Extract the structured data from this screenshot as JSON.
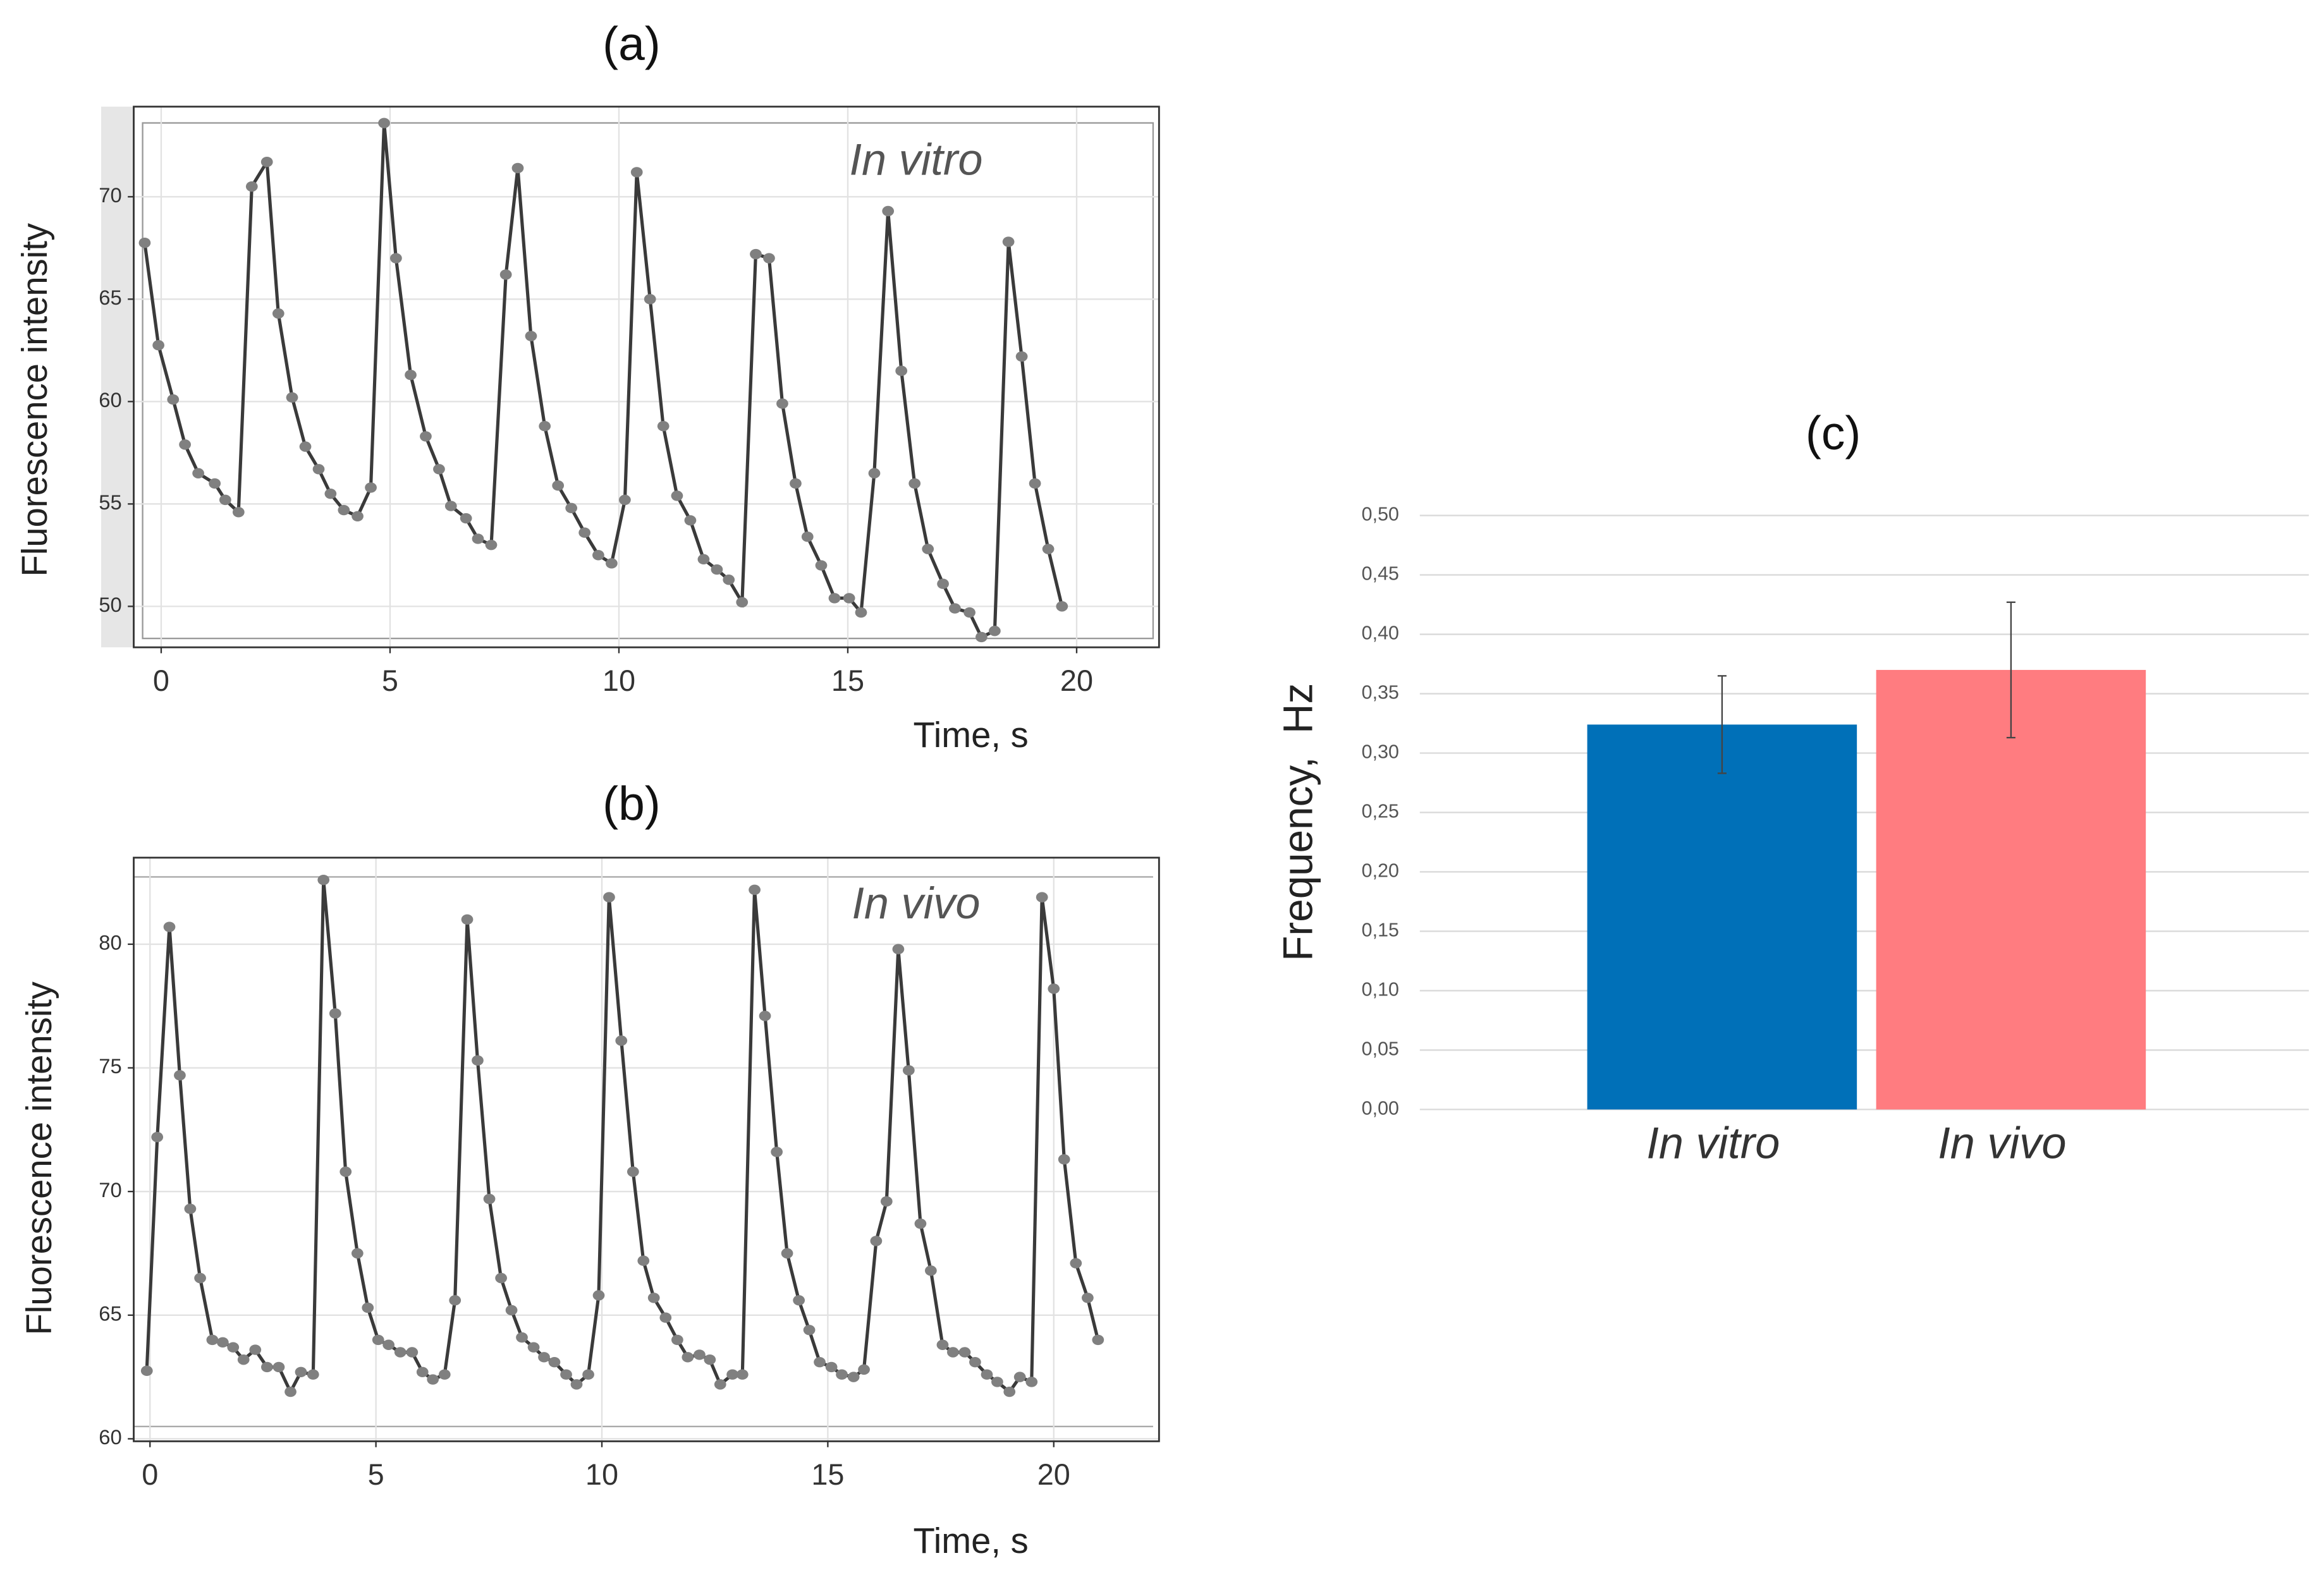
{
  "chart_data": [
    {
      "type": "line",
      "title": "(a)",
      "xlabel": "Time, s",
      "ylabel": "Fluorescence intensity",
      "annotation": "In vitro",
      "color": "#3a3a3a",
      "marker_color": "#808080",
      "grid": true,
      "xlim": [
        -0.6,
        21.8
      ],
      "ylim": [
        48,
        74.4
      ],
      "xticks": [
        0,
        5,
        10,
        15,
        20
      ],
      "yticks": [
        50,
        55,
        60,
        65,
        70
      ],
      "x": [
        -0.36,
        -0.06,
        0.26,
        0.52,
        0.81,
        1.17,
        1.4,
        1.69,
        1.98,
        2.31,
        2.56,
        2.86,
        3.15,
        3.44,
        3.7,
        3.99,
        4.29,
        4.58,
        4.87,
        5.13,
        5.45,
        5.78,
        6.07,
        6.33,
        6.66,
        6.92,
        7.21,
        7.53,
        7.79,
        8.08,
        8.38,
        8.67,
        8.96,
        9.25,
        9.55,
        9.84,
        10.13,
        10.39,
        10.68,
        10.97,
        11.27,
        11.56,
        11.85,
        12.14,
        12.4,
        12.69,
        12.99,
        13.28,
        13.57,
        13.86,
        14.12,
        14.42,
        14.71,
        15.03,
        15.29,
        15.58,
        15.88,
        16.17,
        16.46,
        16.75,
        17.08,
        17.34,
        17.66,
        17.92,
        18.21,
        18.51,
        18.8,
        19.09,
        19.38,
        19.68
      ],
      "values": [
        67.75,
        62.75,
        60.1,
        57.9,
        56.5,
        56.0,
        55.2,
        54.6,
        70.5,
        71.7,
        64.3,
        60.2,
        57.8,
        56.7,
        55.5,
        54.7,
        54.4,
        55.8,
        73.6,
        67.0,
        61.3,
        58.3,
        56.7,
        54.9,
        54.3,
        53.3,
        53.0,
        66.2,
        71.4,
        63.2,
        58.8,
        55.9,
        54.8,
        53.6,
        52.5,
        52.1,
        55.2,
        71.2,
        65.0,
        58.8,
        55.4,
        54.2,
        52.3,
        51.8,
        51.3,
        50.2,
        67.2,
        67.0,
        59.9,
        56.0,
        53.4,
        52.0,
        50.4,
        50.4,
        49.7,
        56.5,
        69.3,
        61.5,
        56.0,
        52.8,
        51.1,
        49.9,
        49.7,
        48.5,
        48.8,
        67.8,
        62.2,
        56.0,
        52.8,
        50.0
      ]
    },
    {
      "type": "line",
      "title": "(b)",
      "xlabel": "Time, s",
      "ylabel": "Fluorescence intensity",
      "annotation": "In vivo",
      "color": "#3a3a3a",
      "marker_color": "#808080",
      "grid": true,
      "xlim": [
        -0.36,
        22.33
      ],
      "ylim": [
        59.9,
        83.5
      ],
      "xticks": [
        0,
        5,
        10,
        15,
        20
      ],
      "yticks": [
        60,
        65,
        70,
        75,
        80
      ],
      "x": [
        -0.07,
        0.16,
        0.43,
        0.66,
        0.89,
        1.11,
        1.38,
        1.61,
        1.84,
        2.07,
        2.33,
        2.59,
        2.85,
        3.11,
        3.34,
        3.61,
        3.84,
        4.1,
        4.33,
        4.59,
        4.82,
        5.05,
        5.28,
        5.54,
        5.8,
        6.03,
        6.26,
        6.52,
        6.75,
        7.02,
        7.25,
        7.51,
        7.77,
        8.0,
        8.23,
        8.49,
        8.72,
        8.95,
        9.21,
        9.44,
        9.7,
        9.93,
        10.16,
        10.43,
        10.69,
        10.92,
        11.15,
        11.41,
        11.67,
        11.9,
        12.16,
        12.39,
        12.62,
        12.89,
        13.11,
        13.38,
        13.61,
        13.87,
        14.1,
        14.36,
        14.59,
        14.82,
        15.08,
        15.31,
        15.57,
        15.8,
        16.07,
        16.3,
        16.56,
        16.79,
        17.05,
        17.28,
        17.54,
        17.77,
        18.03,
        18.26,
        18.52,
        18.75,
        19.02,
        19.25,
        19.51,
        19.74,
        20.0,
        20.23,
        20.49,
        20.75,
        20.98
      ],
      "values": [
        62.75,
        72.2,
        80.7,
        74.7,
        69.3,
        66.5,
        64.0,
        63.9,
        63.7,
        63.2,
        63.6,
        62.9,
        62.9,
        61.9,
        62.7,
        62.6,
        82.6,
        77.2,
        70.8,
        67.5,
        65.3,
        64.0,
        63.8,
        63.5,
        63.5,
        62.7,
        62.4,
        62.6,
        65.6,
        81.0,
        75.3,
        69.7,
        66.5,
        65.2,
        64.1,
        63.7,
        63.3,
        63.1,
        62.6,
        62.2,
        62.6,
        65.8,
        81.9,
        76.1,
        70.8,
        67.2,
        65.7,
        64.9,
        64.0,
        63.3,
        63.4,
        63.2,
        62.2,
        62.6,
        62.6,
        82.2,
        77.1,
        71.6,
        67.5,
        65.6,
        64.4,
        63.1,
        62.9,
        62.6,
        62.5,
        62.8,
        68.0,
        69.6,
        79.8,
        74.9,
        68.7,
        66.8,
        63.8,
        63.5,
        63.5,
        63.1,
        62.6,
        62.3,
        61.9,
        62.5,
        62.3,
        81.9,
        78.2,
        71.3,
        67.1,
        65.7,
        64.0
      ]
    },
    {
      "type": "bar",
      "title": "(c)",
      "ylabel": "Frequency,  Hz",
      "grid": true,
      "categories": [
        "In vitro",
        "In vivo"
      ],
      "values": [
        0.324,
        0.37
      ],
      "errors": [
        0.041,
        0.057
      ],
      "colors": [
        "#0070b8",
        "#ff7c80"
      ],
      "ylim": [
        0,
        0.5
      ],
      "yticks": [
        {
          "value": 0,
          "label": "0,00"
        },
        {
          "value": 0.05,
          "label": "0,05"
        },
        {
          "value": 0.1,
          "label": "0,10"
        },
        {
          "value": 0.15,
          "label": "0,15"
        },
        {
          "value": 0.2,
          "label": "0,20"
        },
        {
          "value": 0.25,
          "label": "0,25"
        },
        {
          "value": 0.3,
          "label": "0,30"
        },
        {
          "value": 0.35,
          "label": "0,35"
        },
        {
          "value": 0.4,
          "label": "0,40"
        },
        {
          "value": 0.45,
          "label": "0,45"
        },
        {
          "value": 0.5,
          "label": "0,50"
        }
      ]
    }
  ]
}
